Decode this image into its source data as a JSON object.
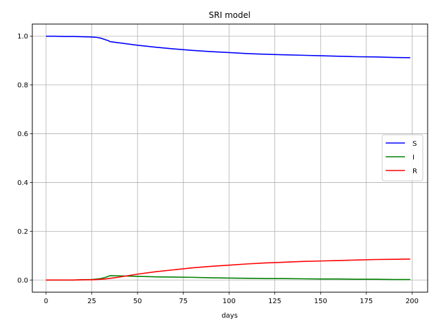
{
  "chart_data": {
    "type": "line",
    "title": "SRI model",
    "xlabel": "days",
    "ylabel": "",
    "xlim": [
      -7.5,
      208.5
    ],
    "ylim": [
      -0.05,
      1.05
    ],
    "xticks": [
      0,
      25,
      50,
      75,
      100,
      125,
      150,
      175,
      200
    ],
    "yticks": [
      0.0,
      0.2,
      0.4,
      0.6,
      0.8,
      1.0
    ],
    "xtick_labels": [
      "0",
      "25",
      "50",
      "75",
      "100",
      "125",
      "150",
      "175",
      "200"
    ],
    "ytick_labels": [
      "0.0",
      "0.2",
      "0.4",
      "0.6",
      "0.8",
      "1.0"
    ],
    "grid": true,
    "legend_position": "center-right",
    "x": [
      0,
      5,
      10,
      15,
      20,
      25,
      28,
      30,
      32,
      34,
      35,
      40,
      45,
      50,
      60,
      70,
      80,
      90,
      100,
      110,
      120,
      130,
      140,
      150,
      160,
      170,
      180,
      190,
      199
    ],
    "series": [
      {
        "name": "S",
        "color": "#0000ff",
        "values": [
          1.0,
          1.0,
          0.999,
          0.999,
          0.998,
          0.997,
          0.995,
          0.992,
          0.987,
          0.982,
          0.978,
          0.973,
          0.968,
          0.963,
          0.955,
          0.948,
          0.942,
          0.937,
          0.933,
          0.929,
          0.926,
          0.924,
          0.922,
          0.92,
          0.918,
          0.916,
          0.915,
          0.913,
          0.912
        ]
      },
      {
        "name": "I",
        "color": "#008000",
        "values": [
          0.0,
          0.0,
          0.0,
          0.0,
          0.001,
          0.002,
          0.004,
          0.006,
          0.01,
          0.015,
          0.018,
          0.017,
          0.016,
          0.015,
          0.013,
          0.012,
          0.011,
          0.009,
          0.008,
          0.007,
          0.006,
          0.006,
          0.005,
          0.004,
          0.004,
          0.003,
          0.003,
          0.002,
          0.002
        ]
      },
      {
        "name": "R",
        "color": "#ff0000",
        "values": [
          0.0,
          0.0,
          0.0,
          0.0,
          0.001,
          0.001,
          0.002,
          0.003,
          0.004,
          0.006,
          0.007,
          0.012,
          0.018,
          0.024,
          0.034,
          0.042,
          0.05,
          0.056,
          0.061,
          0.066,
          0.07,
          0.073,
          0.076,
          0.078,
          0.08,
          0.082,
          0.084,
          0.085,
          0.086
        ]
      }
    ]
  }
}
